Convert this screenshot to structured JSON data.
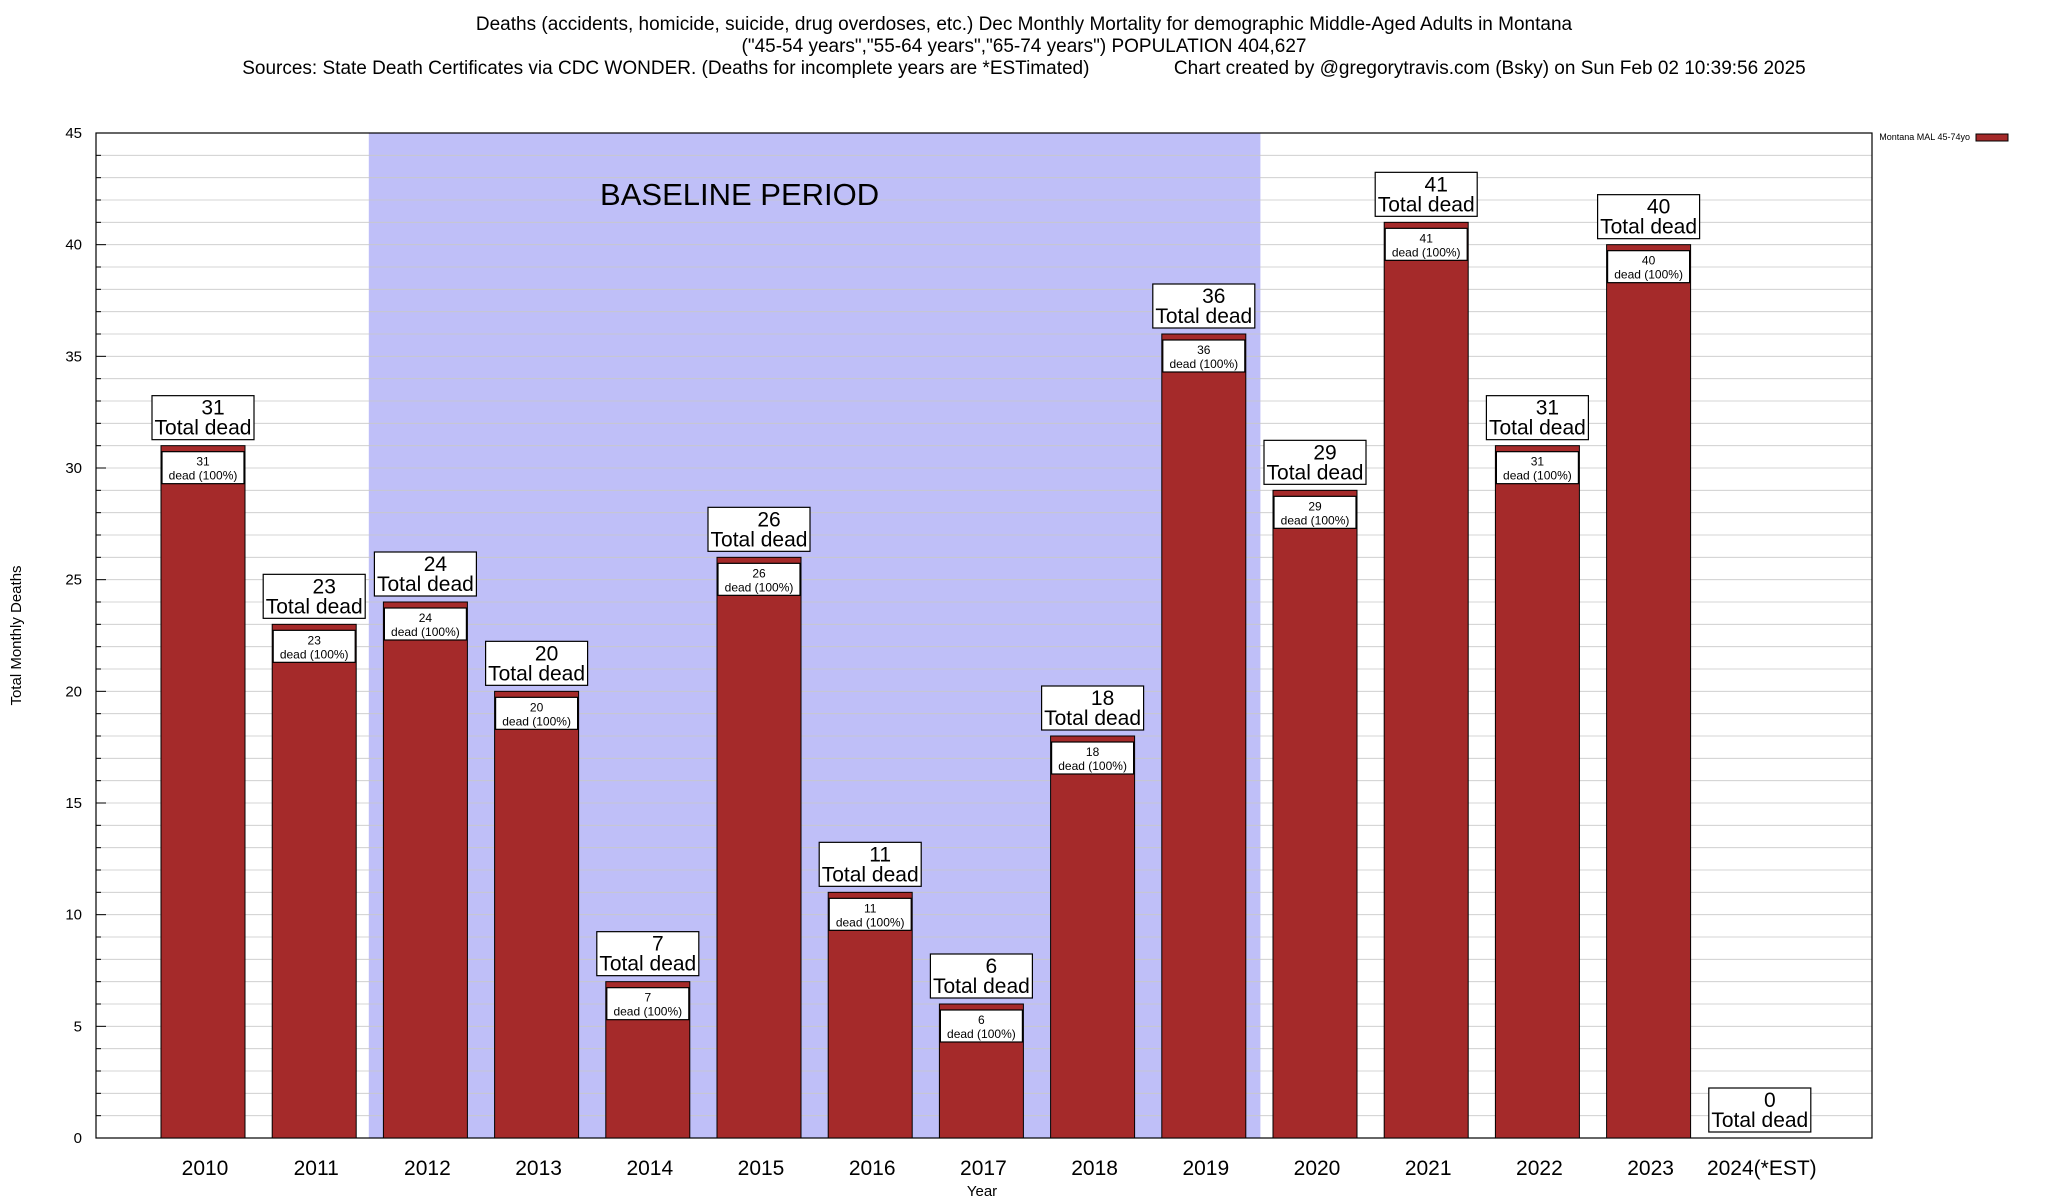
{
  "title": {
    "line1": "Deaths (accidents, homicide, suicide, drug overdoses, etc.) Dec Monthly Mortality for demographic Middle-Aged Adults in Montana",
    "line2": "(\"45-54 years\",\"55-64 years\",\"65-74 years\") POPULATION 404,627",
    "line3_left": "Sources: State Death Certificates via CDC WONDER. (Deaths for incomplete years are *ESTimated)",
    "line3_right": "Chart created by @gregorytravis.com (Bsky) on Sun Feb 02 10:39:56 2025"
  },
  "chart_data": {
    "type": "bar",
    "title": "Deaths (accidents, homicide, suicide, drug overdoses, etc.) Dec Monthly Mortality for demographic Middle-Aged Adults in Montana",
    "xlabel": "Year",
    "ylabel": "Total Monthly Deaths",
    "ylim": [
      0,
      45
    ],
    "yticks": [
      0,
      5,
      10,
      15,
      20,
      25,
      30,
      35,
      40,
      45
    ],
    "grid": true,
    "legend_position": "top-right",
    "categories": [
      "2010",
      "2011",
      "2012",
      "2013",
      "2014",
      "2015",
      "2016",
      "2017",
      "2018",
      "2019",
      "2020",
      "2021",
      "2022",
      "2023",
      "2024(*EST)"
    ],
    "series": [
      {
        "name": "Montana MAL 45-74yo",
        "color": "#a52a2a",
        "values": [
          31,
          23,
          24,
          20,
          7,
          26,
          11,
          6,
          18,
          36,
          29,
          41,
          31,
          40,
          0
        ]
      }
    ],
    "total_label": "Total dead",
    "inner_label": "dead (100%)",
    "baseline": {
      "label": "BASELINE PERIOD",
      "start": "2012",
      "end": "2019",
      "color": "#bfbff8"
    }
  }
}
